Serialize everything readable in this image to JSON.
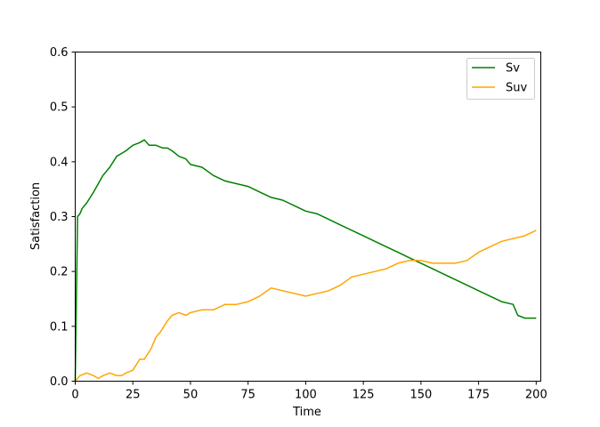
{
  "chart_data": {
    "type": "line",
    "title": "",
    "xlabel": "Time",
    "ylabel": "Satisfaction",
    "xlim": [
      0,
      202
    ],
    "ylim": [
      0,
      0.6
    ],
    "xticks": [
      0,
      25,
      50,
      75,
      100,
      125,
      150,
      175,
      200
    ],
    "yticks": [
      0.0,
      0.1,
      0.2,
      0.3,
      0.4,
      0.5,
      0.6
    ],
    "xtick_labels": [
      "0",
      "25",
      "50",
      "75",
      "100",
      "125",
      "150",
      "175",
      "200"
    ],
    "ytick_labels": [
      "0.0",
      "0.1",
      "0.2",
      "0.3",
      "0.4",
      "0.5",
      "0.6"
    ],
    "grid": false,
    "legend_position": "top-right",
    "series": [
      {
        "name": "Sv",
        "color": "#008000",
        "x": [
          0,
          1,
          2,
          3,
          5,
          8,
          10,
          12,
          15,
          18,
          20,
          22,
          25,
          28,
          30,
          32,
          35,
          38,
          40,
          42,
          45,
          48,
          50,
          55,
          60,
          65,
          70,
          75,
          80,
          85,
          90,
          95,
          100,
          105,
          110,
          115,
          120,
          125,
          130,
          135,
          140,
          145,
          150,
          155,
          160,
          165,
          170,
          175,
          180,
          185,
          190,
          192,
          195,
          200
        ],
        "y": [
          0.0,
          0.3,
          0.305,
          0.315,
          0.325,
          0.345,
          0.36,
          0.375,
          0.39,
          0.41,
          0.415,
          0.42,
          0.43,
          0.435,
          0.44,
          0.43,
          0.43,
          0.425,
          0.425,
          0.42,
          0.41,
          0.405,
          0.395,
          0.39,
          0.375,
          0.365,
          0.36,
          0.355,
          0.345,
          0.335,
          0.33,
          0.32,
          0.31,
          0.305,
          0.295,
          0.285,
          0.275,
          0.265,
          0.255,
          0.245,
          0.235,
          0.225,
          0.215,
          0.205,
          0.195,
          0.185,
          0.175,
          0.165,
          0.155,
          0.145,
          0.14,
          0.12,
          0.115,
          0.115
        ]
      },
      {
        "name": "Suv",
        "color": "#FFA500",
        "x": [
          0,
          2,
          5,
          8,
          10,
          12,
          15,
          18,
          20,
          22,
          25,
          28,
          30,
          33,
          35,
          37,
          40,
          42,
          45,
          48,
          50,
          55,
          60,
          65,
          70,
          75,
          80,
          85,
          90,
          95,
          100,
          105,
          110,
          115,
          120,
          125,
          130,
          135,
          140,
          145,
          150,
          155,
          160,
          165,
          170,
          175,
          180,
          185,
          190,
          195,
          200
        ],
        "y": [
          0.0,
          0.01,
          0.015,
          0.01,
          0.005,
          0.01,
          0.015,
          0.01,
          0.01,
          0.015,
          0.02,
          0.04,
          0.04,
          0.06,
          0.08,
          0.09,
          0.11,
          0.12,
          0.125,
          0.12,
          0.125,
          0.13,
          0.13,
          0.14,
          0.14,
          0.145,
          0.155,
          0.17,
          0.165,
          0.16,
          0.155,
          0.16,
          0.165,
          0.175,
          0.19,
          0.195,
          0.2,
          0.205,
          0.215,
          0.22,
          0.22,
          0.215,
          0.215,
          0.215,
          0.22,
          0.235,
          0.245,
          0.255,
          0.26,
          0.265,
          0.275
        ]
      }
    ]
  }
}
